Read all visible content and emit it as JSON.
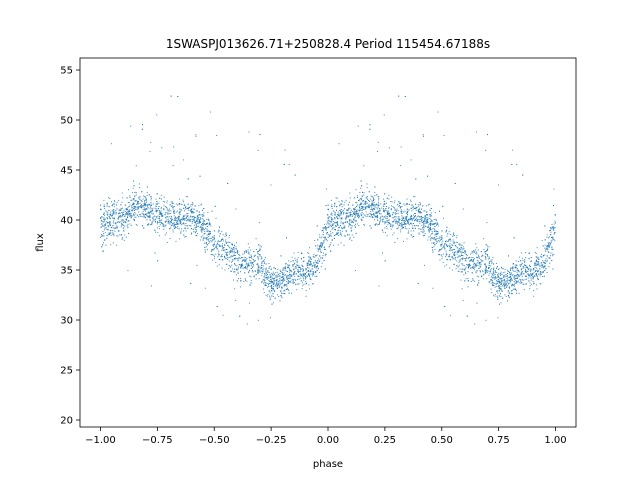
{
  "chart_data": {
    "type": "scatter",
    "title": "1SWASPJ013626.71+250828.4 Period 115454.67188s",
    "xlabel": "phase",
    "ylabel": "flux",
    "xlim": [
      -1.09,
      1.09
    ],
    "ylim": [
      19.3,
      56.2
    ],
    "x_ticks": [
      -1.0,
      -0.75,
      -0.5,
      -0.25,
      0.0,
      0.25,
      0.5,
      0.75,
      1.0
    ],
    "x_tick_labels": [
      "−1.00",
      "−0.75",
      "−0.50",
      "−0.25",
      "0.00",
      "0.25",
      "0.50",
      "0.75",
      "1.00"
    ],
    "y_ticks": [
      20,
      25,
      30,
      35,
      40,
      45,
      50,
      55
    ],
    "y_tick_labels": [
      "20",
      "25",
      "30",
      "35",
      "40",
      "45",
      "50",
      "55"
    ],
    "grid": false,
    "marker_color": "#1f77b4",
    "folded_period": 1.0,
    "n_points_per_phase_cycle": 2600,
    "phase_flux_profile": {
      "phase": [
        0.0,
        0.05,
        0.1,
        0.15,
        0.2,
        0.25,
        0.3,
        0.35,
        0.4,
        0.45,
        0.5,
        0.55,
        0.6,
        0.65,
        0.7,
        0.75,
        0.8,
        0.85,
        0.9,
        0.95,
        1.0
      ],
      "mean_flux": [
        39.5,
        40.2,
        39.8,
        41.5,
        41.3,
        40.5,
        40.3,
        40.0,
        40.4,
        39.5,
        37.5,
        37.0,
        36.0,
        35.5,
        35.8,
        33.5,
        34.2,
        34.6,
        35.0,
        35.8,
        39.5
      ],
      "scatter": [
        2.0,
        1.8,
        1.8,
        1.6,
        1.6,
        1.5,
        1.5,
        1.5,
        1.6,
        1.7,
        1.8,
        1.8,
        1.8,
        1.6,
        1.6,
        1.8,
        1.6,
        1.5,
        1.6,
        1.8,
        2.0
      ]
    }
  }
}
